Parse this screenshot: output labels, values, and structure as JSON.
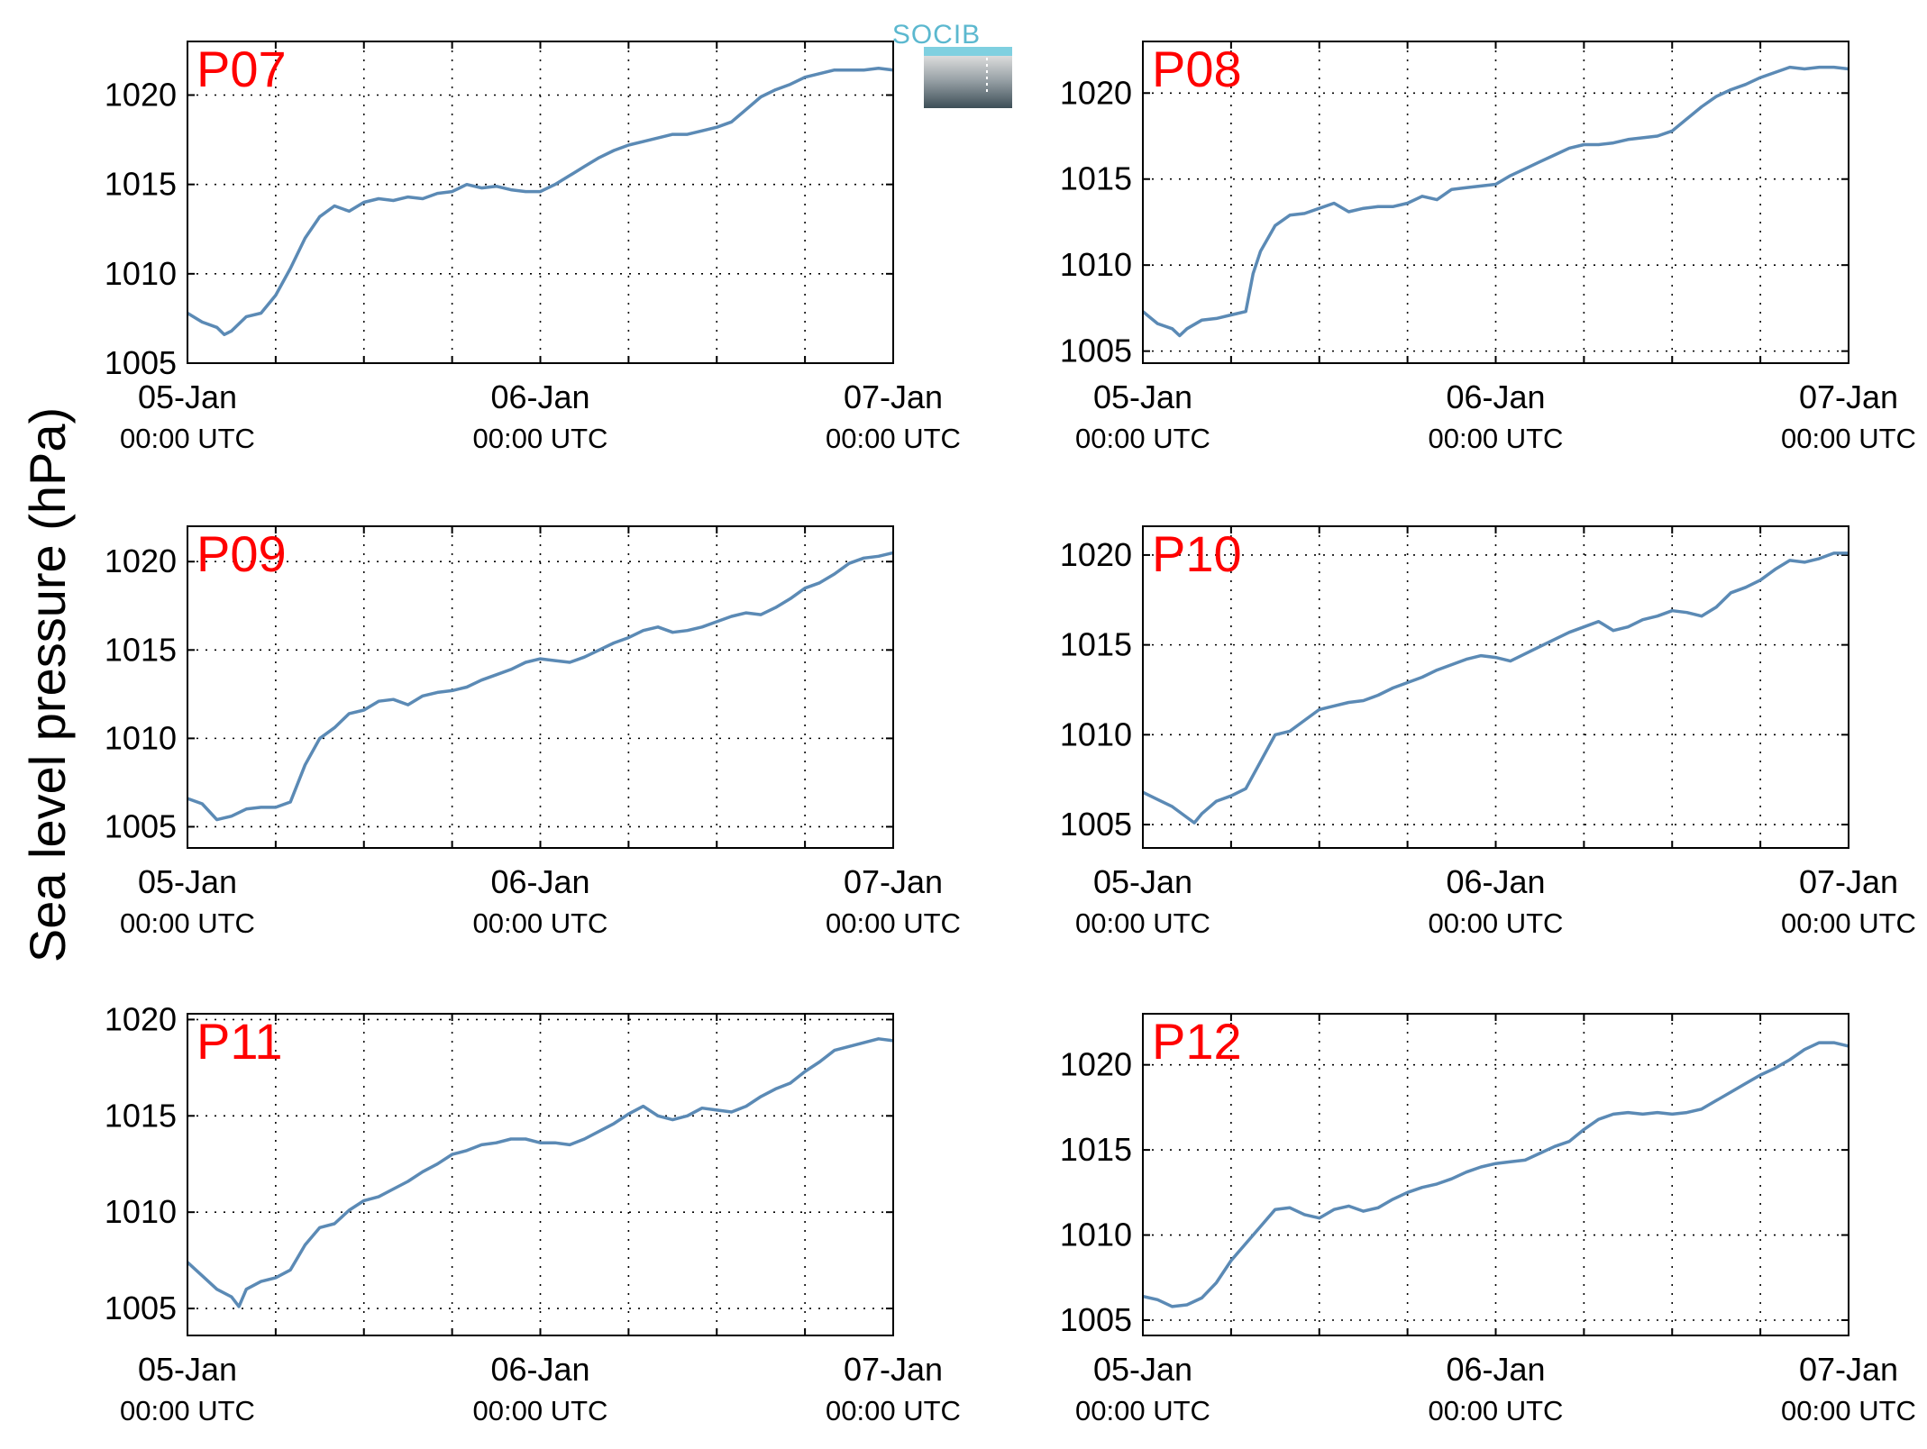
{
  "figure": {
    "ylabel": "Sea level pressure (hPa)",
    "logo_text": "SOCIB",
    "line_color": "#5b8ab5",
    "label_color": "#ff0000"
  },
  "chart_data": [
    {
      "type": "line",
      "label": "P07",
      "x_ticks": [
        "05-Jan",
        "06-Jan",
        "07-Jan"
      ],
      "x_tick_sublabels": [
        "00:00 UTC",
        "00:00 UTC",
        "00:00 UTC"
      ],
      "xlim_hours": [
        0,
        48
      ],
      "ylim": [
        1005,
        1023
      ],
      "yticks": [
        1005,
        1010,
        1015,
        1020
      ],
      "grid": true,
      "series": [
        {
          "x_hours": [
            0,
            1,
            2,
            2.5,
            3,
            4,
            5,
            6,
            7,
            8,
            9,
            10,
            11,
            12,
            13,
            14,
            15,
            16,
            17,
            18,
            19,
            20,
            21,
            22,
            23,
            24,
            25,
            26,
            27,
            28,
            29,
            30,
            31,
            32,
            33,
            34,
            35,
            36,
            37,
            38,
            39,
            40,
            41,
            42,
            43,
            44,
            45,
            46,
            47,
            48
          ],
          "values": [
            1007.8,
            1007.3,
            1007.0,
            1006.6,
            1006.8,
            1007.6,
            1007.8,
            1008.8,
            1010.3,
            1012.0,
            1013.2,
            1013.8,
            1013.5,
            1014.0,
            1014.2,
            1014.1,
            1014.3,
            1014.2,
            1014.5,
            1014.6,
            1015.0,
            1014.8,
            1014.9,
            1014.7,
            1014.6,
            1014.6,
            1015.0,
            1015.5,
            1016.0,
            1016.5,
            1016.9,
            1017.2,
            1017.4,
            1017.6,
            1017.8,
            1017.8,
            1018.0,
            1018.2,
            1018.5,
            1019.2,
            1019.9,
            1020.3,
            1020.6,
            1021.0,
            1021.2,
            1021.4,
            1021.4,
            1021.4,
            1021.5,
            1021.4
          ]
        }
      ]
    },
    {
      "type": "line",
      "label": "P08",
      "x_ticks": [
        "05-Jan",
        "06-Jan",
        "07-Jan"
      ],
      "x_tick_sublabels": [
        "00:00 UTC",
        "00:00 UTC",
        "00:00 UTC"
      ],
      "xlim_hours": [
        0,
        48
      ],
      "ylim": [
        1004.3,
        1023
      ],
      "yticks": [
        1005,
        1010,
        1015,
        1020
      ],
      "grid": true,
      "series": [
        {
          "x_hours": [
            0,
            1,
            2,
            2.5,
            3,
            4,
            5,
            6,
            7,
            7.5,
            8,
            9,
            10,
            11,
            12,
            13,
            14,
            15,
            16,
            17,
            18,
            19,
            20,
            21,
            22,
            23,
            24,
            25,
            26,
            27,
            28,
            29,
            30,
            31,
            32,
            33,
            34,
            35,
            36,
            37,
            38,
            39,
            40,
            41,
            42,
            43,
            44,
            45,
            46,
            47,
            48
          ],
          "values": [
            1007.3,
            1006.6,
            1006.3,
            1005.9,
            1006.3,
            1006.8,
            1006.9,
            1007.1,
            1007.3,
            1009.5,
            1010.8,
            1012.3,
            1012.9,
            1013.0,
            1013.3,
            1013.6,
            1013.1,
            1013.3,
            1013.4,
            1013.4,
            1013.6,
            1014.0,
            1013.8,
            1014.4,
            1014.5,
            1014.6,
            1014.7,
            1015.2,
            1015.6,
            1016.0,
            1016.4,
            1016.8,
            1017.0,
            1017.0,
            1017.1,
            1017.3,
            1017.4,
            1017.5,
            1017.8,
            1018.5,
            1019.2,
            1019.8,
            1020.2,
            1020.5,
            1020.9,
            1021.2,
            1021.5,
            1021.4,
            1021.5,
            1021.5,
            1021.4
          ]
        }
      ]
    },
    {
      "type": "line",
      "label": "P09",
      "x_ticks": [
        "05-Jan",
        "06-Jan",
        "07-Jan"
      ],
      "x_tick_sublabels": [
        "00:00 UTC",
        "00:00 UTC",
        "00:00 UTC"
      ],
      "xlim_hours": [
        0,
        48
      ],
      "ylim": [
        1003.8,
        1022
      ],
      "yticks": [
        1005,
        1010,
        1015,
        1020
      ],
      "grid": true,
      "series": [
        {
          "x_hours": [
            0,
            1,
            2,
            3,
            4,
            5,
            6,
            7,
            8,
            9,
            10,
            11,
            12,
            13,
            14,
            15,
            16,
            17,
            18,
            19,
            20,
            21,
            22,
            23,
            24,
            25,
            26,
            27,
            28,
            29,
            30,
            31,
            32,
            33,
            34,
            35,
            36,
            37,
            38,
            39,
            40,
            41,
            42,
            43,
            44,
            45,
            46,
            47,
            48
          ],
          "values": [
            1006.6,
            1006.3,
            1005.4,
            1005.6,
            1006.0,
            1006.1,
            1006.1,
            1006.4,
            1008.5,
            1010.0,
            1010.6,
            1011.4,
            1011.6,
            1012.1,
            1012.2,
            1011.9,
            1012.4,
            1012.6,
            1012.7,
            1012.9,
            1013.3,
            1013.6,
            1013.9,
            1014.3,
            1014.5,
            1014.4,
            1014.3,
            1014.6,
            1015.0,
            1015.4,
            1015.7,
            1016.1,
            1016.3,
            1016.0,
            1016.1,
            1016.3,
            1016.6,
            1016.9,
            1017.1,
            1017.0,
            1017.4,
            1017.9,
            1018.5,
            1018.8,
            1019.3,
            1019.9,
            1020.2,
            1020.3,
            1020.5
          ]
        }
      ]
    },
    {
      "type": "line",
      "label": "P10",
      "x_ticks": [
        "05-Jan",
        "06-Jan",
        "07-Jan"
      ],
      "x_tick_sublabels": [
        "00:00 UTC",
        "00:00 UTC",
        "00:00 UTC"
      ],
      "xlim_hours": [
        0,
        48
      ],
      "ylim": [
        1003.7,
        1021.6
      ],
      "yticks": [
        1005,
        1010,
        1015,
        1020
      ],
      "grid": true,
      "series": [
        {
          "x_hours": [
            0,
            1,
            2,
            3,
            3.5,
            4,
            5,
            6,
            7,
            8,
            9,
            10,
            11,
            12,
            13,
            14,
            15,
            16,
            17,
            18,
            19,
            20,
            21,
            22,
            23,
            24,
            25,
            26,
            27,
            28,
            29,
            30,
            31,
            32,
            33,
            34,
            35,
            36,
            37,
            38,
            39,
            40,
            41,
            42,
            43,
            44,
            45,
            46,
            47,
            48
          ],
          "values": [
            1006.8,
            1006.4,
            1006.0,
            1005.4,
            1005.1,
            1005.6,
            1006.3,
            1006.6,
            1007.0,
            1008.5,
            1010.0,
            1010.2,
            1010.8,
            1011.4,
            1011.6,
            1011.8,
            1011.9,
            1012.2,
            1012.6,
            1012.9,
            1013.2,
            1013.6,
            1013.9,
            1014.2,
            1014.4,
            1014.3,
            1014.1,
            1014.5,
            1014.9,
            1015.3,
            1015.7,
            1016.0,
            1016.3,
            1015.8,
            1016.0,
            1016.4,
            1016.6,
            1016.9,
            1016.8,
            1016.6,
            1017.1,
            1017.9,
            1018.2,
            1018.6,
            1019.2,
            1019.7,
            1019.6,
            1019.8,
            1020.1,
            1020.1
          ]
        }
      ]
    },
    {
      "type": "line",
      "label": "P11",
      "x_ticks": [
        "05-Jan",
        "06-Jan",
        "07-Jan"
      ],
      "x_tick_sublabels": [
        "00:00 UTC",
        "00:00 UTC",
        "00:00 UTC"
      ],
      "xlim_hours": [
        0,
        48
      ],
      "ylim": [
        1003.6,
        1020.3
      ],
      "yticks": [
        1005,
        1010,
        1015,
        1020
      ],
      "grid": true,
      "series": [
        {
          "x_hours": [
            0,
            1,
            2,
            3,
            3.5,
            4,
            5,
            6,
            7,
            8,
            9,
            10,
            11,
            12,
            13,
            14,
            15,
            16,
            17,
            18,
            19,
            20,
            21,
            22,
            23,
            24,
            25,
            26,
            27,
            28,
            29,
            30,
            31,
            32,
            33,
            34,
            35,
            36,
            37,
            38,
            39,
            40,
            41,
            42,
            43,
            44,
            45,
            46,
            47,
            48
          ],
          "values": [
            1007.4,
            1006.7,
            1006.0,
            1005.6,
            1005.1,
            1006.0,
            1006.4,
            1006.6,
            1007.0,
            1008.3,
            1009.2,
            1009.4,
            1010.1,
            1010.6,
            1010.8,
            1011.2,
            1011.6,
            1012.1,
            1012.5,
            1013.0,
            1013.2,
            1013.5,
            1013.6,
            1013.8,
            1013.8,
            1013.6,
            1013.6,
            1013.5,
            1013.8,
            1014.2,
            1014.6,
            1015.1,
            1015.5,
            1015.0,
            1014.8,
            1015.0,
            1015.4,
            1015.3,
            1015.2,
            1015.5,
            1016.0,
            1016.4,
            1016.7,
            1017.3,
            1017.8,
            1018.4,
            1018.6,
            1018.8,
            1019.0,
            1018.9
          ]
        }
      ]
    },
    {
      "type": "line",
      "label": "P12",
      "x_ticks": [
        "05-Jan",
        "06-Jan",
        "07-Jan"
      ],
      "x_tick_sublabels": [
        "00:00 UTC",
        "00:00 UTC",
        "00:00 UTC"
      ],
      "xlim_hours": [
        0,
        48
      ],
      "ylim": [
        1004.1,
        1023
      ],
      "yticks": [
        1005,
        1010,
        1015,
        1020
      ],
      "grid": true,
      "series": [
        {
          "x_hours": [
            0,
            1,
            2,
            3,
            4,
            5,
            6,
            7,
            8,
            9,
            10,
            11,
            12,
            13,
            14,
            15,
            16,
            17,
            18,
            19,
            20,
            21,
            22,
            23,
            24,
            25,
            26,
            27,
            28,
            29,
            30,
            31,
            32,
            33,
            34,
            35,
            36,
            37,
            38,
            39,
            40,
            41,
            42,
            43,
            44,
            45,
            46,
            47,
            48
          ],
          "values": [
            1006.4,
            1006.2,
            1005.8,
            1005.9,
            1006.3,
            1007.2,
            1008.5,
            1009.5,
            1010.5,
            1011.5,
            1011.6,
            1011.2,
            1011.0,
            1011.5,
            1011.7,
            1011.4,
            1011.6,
            1012.1,
            1012.5,
            1012.8,
            1013.0,
            1013.3,
            1013.7,
            1014.0,
            1014.2,
            1014.3,
            1014.4,
            1014.8,
            1015.2,
            1015.5,
            1016.2,
            1016.8,
            1017.1,
            1017.2,
            1017.1,
            1017.2,
            1017.1,
            1017.2,
            1017.4,
            1017.9,
            1018.4,
            1018.9,
            1019.4,
            1019.8,
            1020.3,
            1020.9,
            1021.3,
            1021.3,
            1021.1
          ]
        }
      ]
    }
  ]
}
